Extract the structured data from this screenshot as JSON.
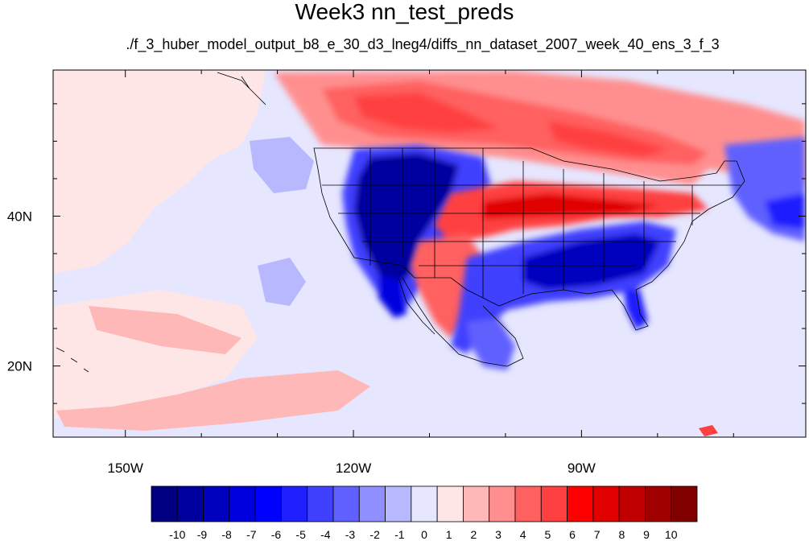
{
  "title": "Week3 nn_test_preds",
  "subtitle": "./f_3_huber_model_output_b8_e_30_d3_lneg4/diffs_nn_dataset_2007_week_40_ens_3_f_3",
  "axes": {
    "lon_ticks": [
      {
        "value": -150,
        "label": "150W"
      },
      {
        "value": -120,
        "label": "120W"
      },
      {
        "value": -90,
        "label": "90W"
      }
    ],
    "lat_ticks": [
      {
        "value": 40,
        "label": "40N"
      },
      {
        "value": 20,
        "label": "20N"
      }
    ],
    "lon_range": [
      -159.5,
      -60.5
    ],
    "lat_range": [
      10.5,
      59.5
    ]
  },
  "colorbar": {
    "labels": [
      "-10",
      "-9",
      "-8",
      "-7",
      "-6",
      "-5",
      "-4",
      "-3",
      "-2",
      "-1",
      "0",
      "1",
      "2",
      "3",
      "4",
      "5",
      "6",
      "7",
      "8",
      "9",
      "10"
    ],
    "colors": [
      "#000080",
      "#00009f",
      "#0000bf",
      "#0000df",
      "#0000ff",
      "#1f1fff",
      "#4040ff",
      "#6060ff",
      "#8f8fff",
      "#b8b8ff",
      "#e6e6ff",
      "#ffe6e6",
      "#ffb8b8",
      "#ff8f8f",
      "#ff6060",
      "#ff4040",
      "#ff0000",
      "#e00000",
      "#c00000",
      "#a00000",
      "#800000"
    ]
  },
  "regions": [
    {
      "name": "west-us-negative",
      "level": -9
    },
    {
      "name": "southeast-us-negative",
      "level": -8
    },
    {
      "name": "central-us-positive",
      "level": 6
    },
    {
      "name": "canada-positive",
      "level": 4
    },
    {
      "name": "southwest-positive",
      "level": 4
    }
  ]
}
